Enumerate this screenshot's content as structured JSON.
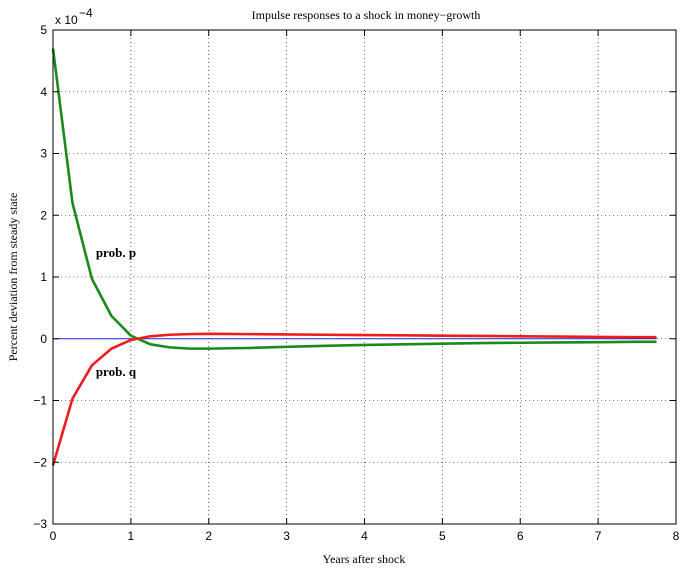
{
  "chart_data": {
    "type": "line",
    "title": "Impulse responses to a shock in money−growth",
    "xlabel": "Years after shock",
    "ylabel": "Percent deviation from steady state",
    "y_scale_label": "x 10",
    "y_scale_exponent": "−4",
    "xlim": [
      0,
      8
    ],
    "ylim": [
      -3,
      5
    ],
    "xticks": [
      0,
      1,
      2,
      3,
      4,
      5,
      6,
      7,
      8
    ],
    "yticks": [
      -3,
      -2,
      -1,
      0,
      1,
      2,
      3,
      4,
      5
    ],
    "grid": true,
    "series": [
      {
        "color": "#1a8a1a",
        "x": [
          0,
          0.25,
          0.5,
          0.75,
          1.0,
          1.25,
          1.5,
          1.75,
          2.0,
          2.5,
          3.0,
          3.5,
          4.0,
          4.5,
          5.0,
          5.5,
          6.0,
          6.5,
          7.0,
          7.5,
          7.75
        ],
        "values": [
          4.7,
          2.2,
          0.97,
          0.37,
          0.05,
          -0.09,
          -0.14,
          -0.16,
          -0.16,
          -0.15,
          -0.13,
          -0.115,
          -0.1,
          -0.09,
          -0.08,
          -0.07,
          -0.065,
          -0.06,
          -0.055,
          -0.05,
          -0.05
        ]
      },
      {
        "color": "#ee1c1c",
        "x": [
          0,
          0.25,
          0.5,
          0.75,
          1.0,
          1.25,
          1.5,
          1.75,
          2.0,
          2.5,
          3.0,
          3.5,
          4.0,
          4.5,
          5.0,
          5.5,
          6.0,
          6.5,
          7.0,
          7.5,
          7.75
        ],
        "values": [
          -2.05,
          -0.97,
          -0.43,
          -0.16,
          -0.02,
          0.04,
          0.065,
          0.075,
          0.08,
          0.075,
          0.07,
          0.065,
          0.06,
          0.055,
          0.05,
          0.045,
          0.04,
          0.035,
          0.03,
          0.025,
          0.025
        ]
      },
      {
        "color": "#2020d0",
        "x": [
          0,
          7.75
        ],
        "values": [
          0,
          0
        ]
      }
    ],
    "annotations": [
      {
        "text": "prob. p",
        "x": 0.55,
        "y": 1.32
      },
      {
        "text": "prob. q",
        "x": 0.55,
        "y": -0.6
      }
    ]
  }
}
